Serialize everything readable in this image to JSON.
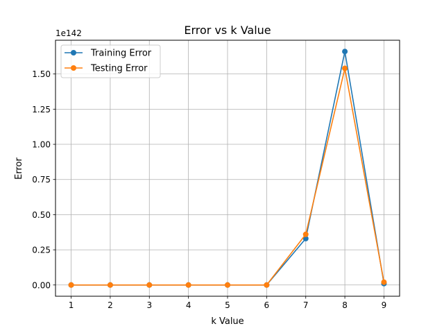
{
  "chart_data": {
    "type": "line",
    "title": "Error vs k Value",
    "xlabel": "k Value",
    "ylabel": "Error",
    "y_offset_label": "1e142",
    "x": [
      1,
      2,
      3,
      4,
      5,
      6,
      7,
      8,
      9
    ],
    "series": [
      {
        "name": "Training Error",
        "color": "#1f77b4",
        "values": [
          0,
          0,
          0,
          0,
          0,
          0,
          0.33,
          1.66,
          0.01
        ]
      },
      {
        "name": "Testing Error",
        "color": "#ff7f0e",
        "values": [
          0,
          0,
          0,
          0,
          0,
          0,
          0.36,
          1.54,
          0.02
        ]
      }
    ],
    "x_ticks": [
      1,
      2,
      3,
      4,
      5,
      6,
      7,
      8,
      9
    ],
    "x_tick_labels": [
      "1",
      "2",
      "3",
      "4",
      "5",
      "6",
      "7",
      "8",
      "9"
    ],
    "y_ticks": [
      0,
      0.25,
      0.5,
      0.75,
      1.0,
      1.25,
      1.5
    ],
    "y_tick_labels": [
      "0.00",
      "0.25",
      "0.50",
      "0.75",
      "1.00",
      "1.25",
      "1.50"
    ],
    "xlim": [
      0.6,
      9.4
    ],
    "ylim": [
      -0.08,
      1.74
    ],
    "grid": true,
    "legend_position": "top-left"
  }
}
